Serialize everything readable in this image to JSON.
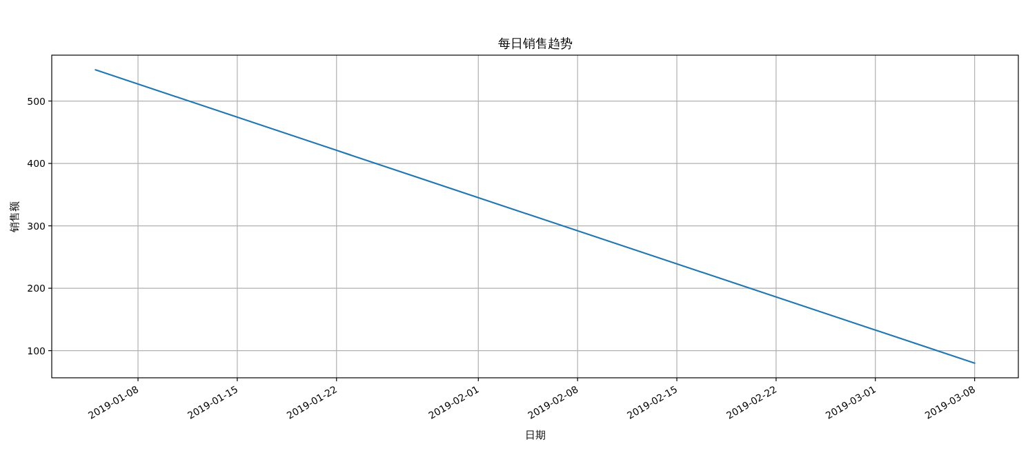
{
  "chart_data": {
    "type": "line",
    "title": "每日销售趋势",
    "xlabel": "日期",
    "ylabel": "销售额",
    "x": [
      "2019-01-05",
      "2019-01-22",
      "2019-02-15",
      "2019-03-08"
    ],
    "series": [
      {
        "color": "#1f77b4",
        "values": [
          550,
          421,
          239,
          80
        ]
      }
    ],
    "xlim": [
      "2019-01-01T22:00",
      "2019-03-11T02:00"
    ],
    "xticks": [
      "2019-01-08",
      "2019-01-15",
      "2019-01-22",
      "2019-02-01",
      "2019-02-08",
      "2019-02-15",
      "2019-02-22",
      "2019-03-01",
      "2019-03-08"
    ],
    "ylim": [
      56.5,
      573.5
    ],
    "yticks": [
      100,
      200,
      300,
      400,
      500
    ],
    "grid": true,
    "marker": "none",
    "line_style": "solid"
  }
}
